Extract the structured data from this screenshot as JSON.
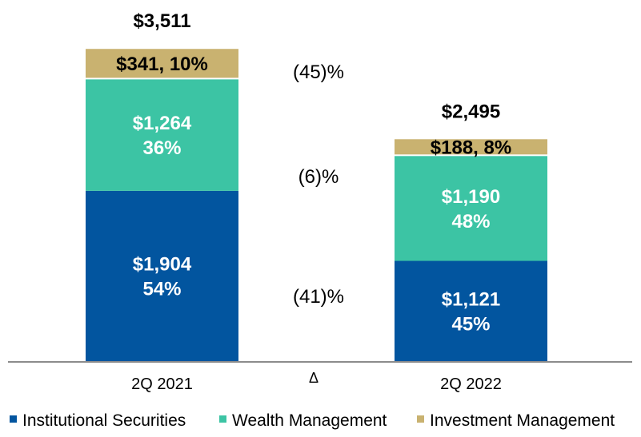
{
  "chart_data": {
    "type": "bar",
    "stacked": true,
    "title": "",
    "xlabel": "",
    "ylabel": "",
    "categories": [
      "2Q 2021",
      "2Q 2022"
    ],
    "totals": [
      "$3,511",
      "$2,495"
    ],
    "series": [
      {
        "name": "Institutional Securities",
        "color": "#02559F",
        "values": [
          1904,
          1121
        ],
        "labels": [
          [
            "$1,904",
            "54%"
          ],
          [
            "$1,121",
            "45%"
          ]
        ],
        "change": "(41)%"
      },
      {
        "name": "Wealth Management",
        "color": "#3CC4A4",
        "values": [
          1264,
          1190
        ],
        "labels": [
          [
            "$1,264",
            "36%"
          ],
          [
            "$1,190",
            "48%"
          ]
        ],
        "change": "(6)%"
      },
      {
        "name": "Investment Management",
        "color": "#C9B270",
        "values": [
          341,
          188
        ],
        "labels": [
          [
            "$341, 10%"
          ],
          [
            "$188, 8%"
          ]
        ],
        "change": "(45)%"
      }
    ],
    "delta_label": "Δ",
    "ylim": [
      0,
      3511
    ],
    "grid": false,
    "legend": "bottom"
  }
}
